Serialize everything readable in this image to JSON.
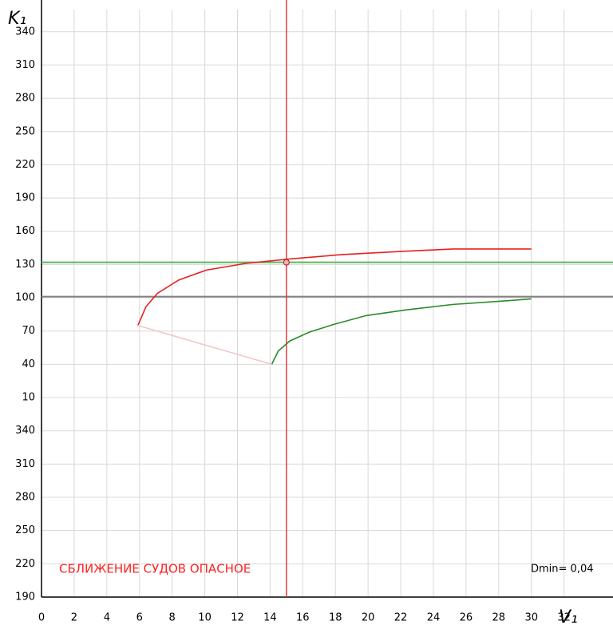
{
  "chart_data": {
    "type": "line",
    "xlabel": "V₁",
    "ylabel": "K₁",
    "annotations": [
      "СБЛИЖЕНИЕ СУДОВ ОПАСНОЕ",
      "Dmin= 0,04"
    ],
    "xlim": [
      0,
      35
    ],
    "ylim": [
      190,
      720
    ],
    "xticks": [
      0,
      2,
      4,
      6,
      8,
      10,
      12,
      14,
      16,
      18,
      20,
      22,
      24,
      26,
      28,
      30,
      32
    ],
    "yticks": [
      190,
      220,
      250,
      280,
      310,
      340,
      {
        "value": 370,
        "label": "10"
      },
      {
        "value": 400,
        "label": "40"
      },
      {
        "value": 430,
        "label": "70"
      },
      {
        "value": 460,
        "label": "100"
      },
      {
        "value": 490,
        "label": "130"
      },
      {
        "value": 520,
        "label": "160"
      },
      {
        "value": 550,
        "label": "190"
      },
      {
        "value": 580,
        "label": "220"
      },
      {
        "value": 610,
        "label": "250"
      },
      {
        "value": 640,
        "label": "280"
      },
      {
        "value": 670,
        "label": "310"
      },
      {
        "value": 700,
        "label": "340"
      }
    ],
    "grid": true,
    "hlines": [
      {
        "value": 461,
        "color": "#808080"
      },
      {
        "value": 492,
        "color": "#5cb85c"
      }
    ],
    "vline": {
      "value": 15,
      "color": "#e83a3a"
    },
    "series": [
      {
        "color": "#e82020",
        "x": [
          5.9,
          6.4,
          7.1,
          8.4,
          10.1,
          12.5,
          15.2,
          18.4,
          22.3,
          25.2,
          30
        ],
        "values": [
          435,
          452,
          464,
          476,
          485,
          491,
          495,
          499,
          502,
          504,
          504
        ]
      },
      {
        "color": "#2a8a2a",
        "x": [
          14.1,
          14.5,
          15.2,
          16.4,
          17.9,
          19.9,
          22.3,
          25.2,
          28.2,
          30
        ],
        "values": [
          400,
          412,
          421,
          429,
          436,
          444,
          449,
          454,
          457,
          459
        ]
      },
      {
        "color": "#f0c8c8",
        "x": [
          5.9,
          14.1
        ],
        "values": [
          435,
          400
        ]
      }
    ]
  }
}
